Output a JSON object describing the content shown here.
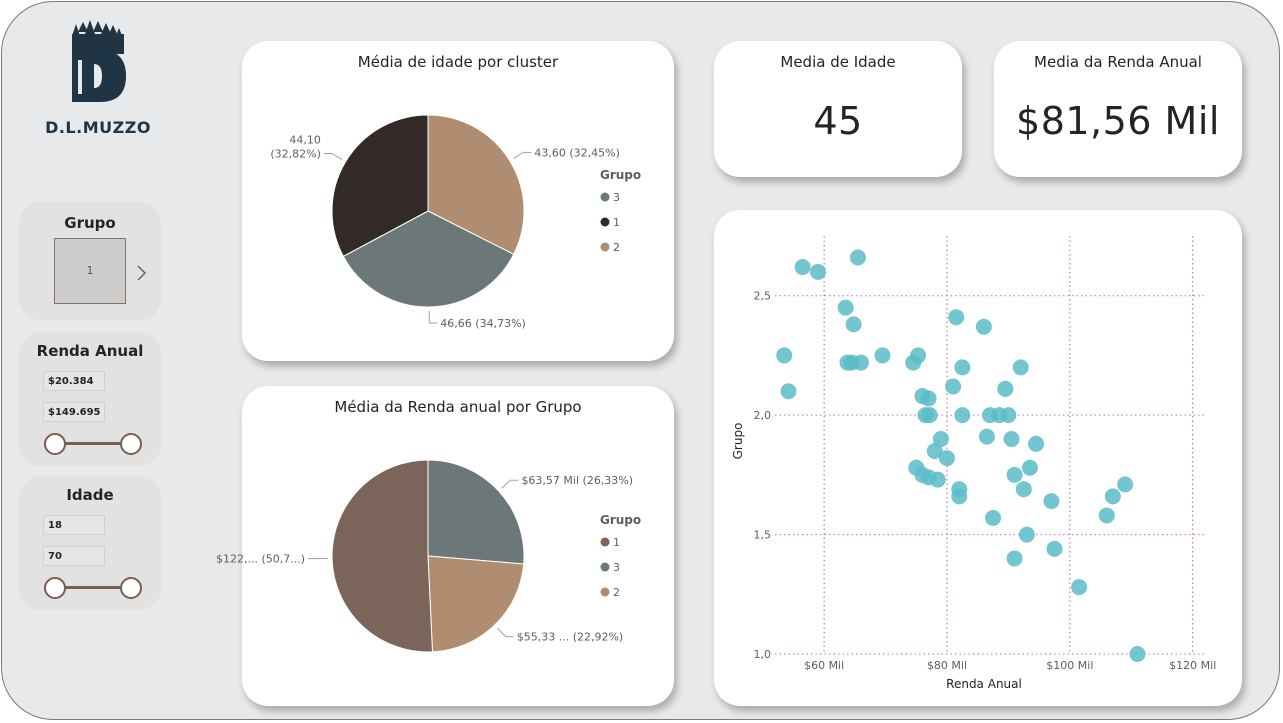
{
  "logo": {
    "text": "D.L.MUZZO"
  },
  "colors": {
    "grupo_1": "#7b645a",
    "grupo_2": "#b08c70",
    "grupo_3": "#6b7779",
    "cluster_dark": "#332a28",
    "scatter_point": "#5bbcc7",
    "slider": "#7a5e50"
  },
  "slicers": {
    "grupo": {
      "title": "Grupo",
      "selected": "1",
      "chevron_icon": "chevron-right-icon"
    },
    "renda": {
      "title": "Renda Anual",
      "min": "$20.384",
      "max": "$149.695"
    },
    "idade": {
      "title": "Idade",
      "min": "18",
      "max": "70"
    }
  },
  "kpis": {
    "idade": {
      "title": "Media de Idade",
      "value": "45"
    },
    "renda": {
      "title": "Media da Renda Anual",
      "value": "$81,56 Mil"
    }
  },
  "chart_data": [
    {
      "type": "pie",
      "title": "Média de idade por cluster",
      "legend_title": "Grupo",
      "legend_position": "right",
      "legend": [
        {
          "name": "3",
          "color": "#6b7779"
        },
        {
          "name": "1",
          "color": "#332a28"
        },
        {
          "name": "2",
          "color": "#b08c70"
        }
      ],
      "slices": [
        {
          "name": "2",
          "value": 43.6,
          "label": "43,60 (32,45%)",
          "color": "#b08c70"
        },
        {
          "name": "3",
          "value": 46.66,
          "label": "46,66 (34,73%)",
          "color": "#6b7779"
        },
        {
          "name": "1",
          "value": 44.1,
          "label_lines": [
            "44,10",
            "(32,82%)"
          ],
          "color": "#332a28"
        }
      ]
    },
    {
      "type": "pie",
      "title": "Média da Renda anual por Grupo",
      "legend_title": "Grupo",
      "legend_position": "right",
      "legend": [
        {
          "name": "1",
          "color": "#7b645a"
        },
        {
          "name": "3",
          "color": "#6b7779"
        },
        {
          "name": "2",
          "color": "#b08c70"
        }
      ],
      "slices": [
        {
          "name": "3",
          "value": 63.57,
          "label": "$63,57 Mil (26,33%)",
          "color": "#6b7779"
        },
        {
          "name": "2",
          "value": 55.33,
          "label": "$55,33 ... (22,92%)",
          "color": "#b08c70"
        },
        {
          "name": "1",
          "value": 122.5,
          "label": "$122,... (50,7...)",
          "color": "#7b645a"
        }
      ]
    },
    {
      "type": "scatter",
      "xlabel": "Renda Anual",
      "ylabel": "Grupo",
      "xlim": [
        52,
        122
      ],
      "ylim": [
        1.0,
        2.75
      ],
      "xticks": [
        60,
        80,
        100,
        120
      ],
      "xtick_labels": [
        "$60 Mil",
        "$80 Mil",
        "$100 Mil",
        "$120 Mil"
      ],
      "yticks": [
        1.0,
        1.5,
        2.0,
        2.5
      ],
      "ytick_labels": [
        "1,0",
        "1,5",
        "2,0",
        "2,5"
      ],
      "grid": true,
      "points": [
        [
          56.5,
          2.62
        ],
        [
          59.0,
          2.6
        ],
        [
          65.5,
          2.66
        ],
        [
          53.5,
          2.25
        ],
        [
          54.2,
          2.1
        ],
        [
          63.5,
          2.45
        ],
        [
          64.8,
          2.38
        ],
        [
          63.8,
          2.22
        ],
        [
          64.5,
          2.22
        ],
        [
          66.0,
          2.22
        ],
        [
          69.5,
          2.25
        ],
        [
          74.5,
          2.22
        ],
        [
          75.3,
          2.25
        ],
        [
          76.0,
          2.08
        ],
        [
          77.0,
          2.07
        ],
        [
          76.5,
          2.0
        ],
        [
          77.2,
          2.0
        ],
        [
          81.5,
          2.41
        ],
        [
          86.0,
          2.37
        ],
        [
          82.5,
          2.2
        ],
        [
          81.0,
          2.12
        ],
        [
          82.5,
          2.0
        ],
        [
          90.0,
          2.0
        ],
        [
          92.0,
          2.2
        ],
        [
          89.5,
          2.11
        ],
        [
          88.5,
          2.0
        ],
        [
          87.0,
          2.0
        ],
        [
          79.0,
          1.9
        ],
        [
          78.0,
          1.85
        ],
        [
          80.0,
          1.82
        ],
        [
          75.0,
          1.78
        ],
        [
          76.0,
          1.75
        ],
        [
          77.0,
          1.74
        ],
        [
          78.5,
          1.73
        ],
        [
          82.0,
          1.69
        ],
        [
          82.0,
          1.66
        ],
        [
          86.5,
          1.91
        ],
        [
          90.5,
          1.9
        ],
        [
          94.5,
          1.88
        ],
        [
          93.5,
          1.78
        ],
        [
          91.0,
          1.75
        ],
        [
          92.5,
          1.69
        ],
        [
          97.0,
          1.64
        ],
        [
          87.5,
          1.57
        ],
        [
          93.0,
          1.5
        ],
        [
          97.5,
          1.44
        ],
        [
          91.0,
          1.4
        ],
        [
          101.5,
          1.28
        ],
        [
          106.0,
          1.58
        ],
        [
          107.0,
          1.66
        ],
        [
          109.0,
          1.71
        ],
        [
          111.0,
          1.0
        ]
      ]
    }
  ]
}
